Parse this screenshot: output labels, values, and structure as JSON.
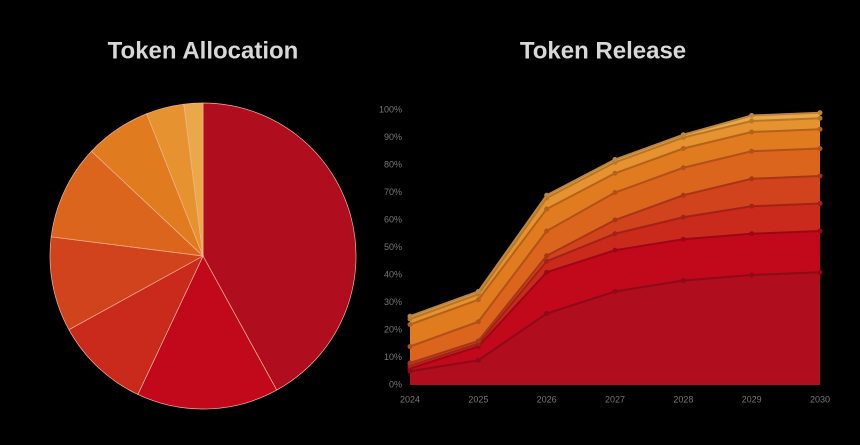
{
  "chart_data": [
    {
      "type": "pie",
      "title": "Token Allocation",
      "values": [
        42,
        15,
        10,
        10,
        10,
        7,
        4,
        2
      ],
      "colors": [
        "#b00d1e",
        "#c2091c",
        "#c92a1c",
        "#d1431c",
        "#dc651e",
        "#e07b20",
        "#e69230",
        "#eba84a"
      ]
    },
    {
      "type": "stacked-area",
      "title": "Token Release",
      "categories": [
        "2024",
        "2025",
        "2026",
        "2027",
        "2028",
        "2029",
        "2030"
      ],
      "series": [
        {
          "color": "#b00d1e",
          "values": [
            5,
            9,
            26,
            34,
            38,
            40,
            41
          ]
        },
        {
          "color": "#c2091c",
          "values": [
            1,
            5,
            15,
            15,
            15,
            15,
            15
          ]
        },
        {
          "color": "#c92a1c",
          "values": [
            1,
            1,
            4,
            6,
            8,
            10,
            10
          ]
        },
        {
          "color": "#d1431c",
          "values": [
            1,
            1,
            2,
            5,
            8,
            10,
            10
          ]
        },
        {
          "color": "#dc651e",
          "values": [
            6,
            7,
            9,
            10,
            10,
            10,
            10
          ]
        },
        {
          "color": "#e07b20",
          "values": [
            8,
            8,
            8,
            7,
            7,
            7,
            7
          ]
        },
        {
          "color": "#e69230",
          "values": [
            2,
            2,
            4,
            4,
            4,
            4,
            4
          ]
        },
        {
          "color": "#eba84a",
          "values": [
            1,
            1,
            1,
            1,
            1,
            2,
            2
          ]
        }
      ],
      "ylim": [
        0,
        100
      ],
      "yticks": [
        {
          "value": 0,
          "label": "0%"
        },
        {
          "value": 10,
          "label": "10%"
        },
        {
          "value": 20,
          "label": "20%"
        },
        {
          "value": 30,
          "label": "30%"
        },
        {
          "value": 40,
          "label": "40%"
        },
        {
          "value": 50,
          "label": "50%"
        },
        {
          "value": 60,
          "label": "60%"
        },
        {
          "value": 70,
          "label": "70%"
        },
        {
          "value": 80,
          "label": "80%"
        },
        {
          "value": 90,
          "label": "90%"
        },
        {
          "value": 100,
          "label": "100%"
        }
      ]
    }
  ]
}
